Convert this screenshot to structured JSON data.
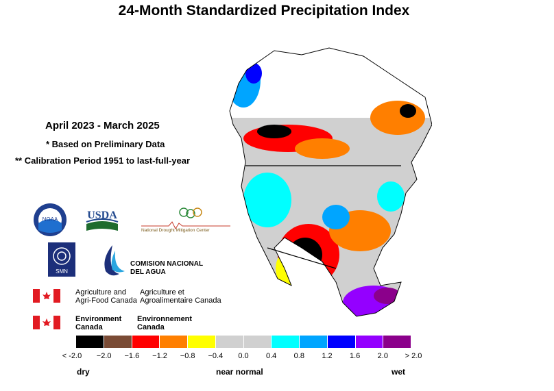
{
  "title": "24-Month Standardized Precipitation Index",
  "period": "April 2023 - March 2025",
  "note_preliminary": "* Based on Preliminary Data",
  "note_calibration": "** Calibration Period 1951 to last-full-year",
  "logos": {
    "noaa": "NOAA",
    "usda": "USDA",
    "ndmc": "National Drought Mitigation Center",
    "smn": "SMN",
    "conagua_line1": "COMISION NACIONAL",
    "conagua_line2": "DEL AGUA",
    "agri_en_line1": "Agriculture and",
    "agri_en_line2": "Agri-Food Canada",
    "agri_fr_line1": "Agriculture et",
    "agri_fr_line2": "Agroalimentaire Canada",
    "env_en_line1": "Environment",
    "env_en_line2": "Canada",
    "env_fr_line1": "Environnement",
    "env_fr_line2": "Canada"
  },
  "legend": {
    "colors": [
      "#000000",
      "#7a4b35",
      "#ff0000",
      "#ff7f00",
      "#ffff00",
      "#d0d0d0",
      "#d0d0d0",
      "#00ffff",
      "#00a5ff",
      "#0000ff",
      "#9400ff",
      "#8b008b"
    ],
    "ticks": [
      "< -2.0",
      "−2.0",
      "−1.6",
      "−1.2",
      "−0.8",
      "−0.4",
      "0.0",
      "0.4",
      "0.8",
      "1.2",
      "1.6",
      "2.0",
      "> 2.0"
    ],
    "label_dry": "dry",
    "label_near_normal": "near normal",
    "label_wet": "wet"
  }
}
